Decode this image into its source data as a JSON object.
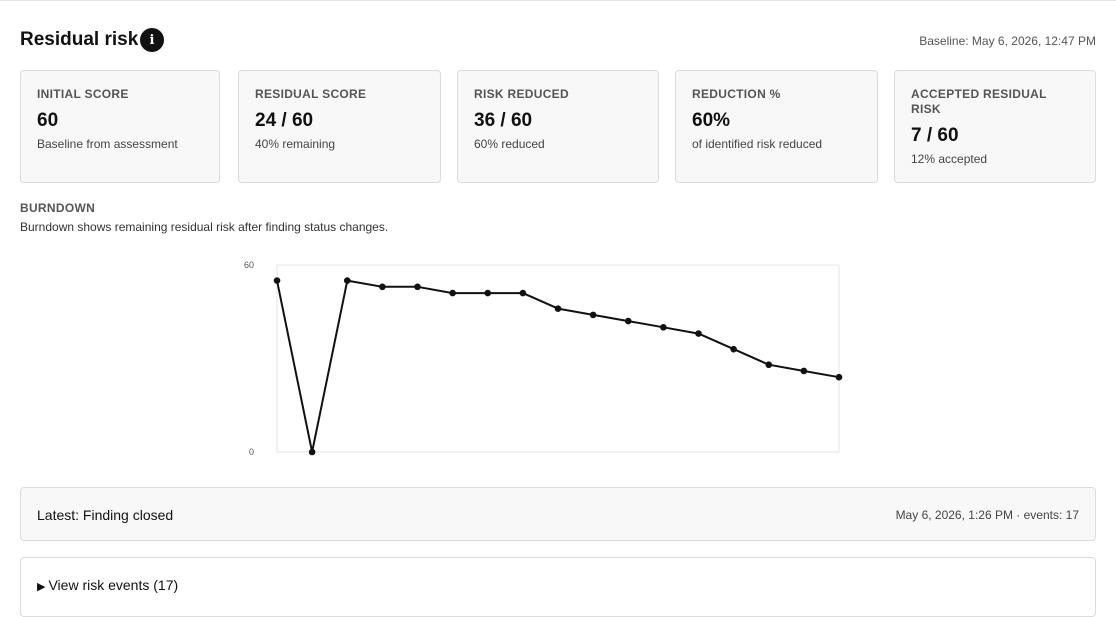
{
  "header": {
    "title": "Residual risk",
    "info_icon": "info-icon",
    "baseline": "Baseline: May 6, 2026, 12:47 PM"
  },
  "cards": [
    {
      "label": "INITIAL SCORE",
      "value": "60",
      "sub": "Baseline from assessment"
    },
    {
      "label": "RESIDUAL SCORE",
      "value": "24 / 60",
      "sub": "40% remaining"
    },
    {
      "label": "RISK REDUCED",
      "value": "36 / 60",
      "sub": "60% reduced"
    },
    {
      "label": "REDUCTION %",
      "value": "60%",
      "sub": "of identified risk reduced"
    },
    {
      "label": "ACCEPTED RESIDUAL RISK",
      "value": "7 / 60",
      "sub": "12% accepted"
    }
  ],
  "burndown": {
    "title": "BURNDOWN",
    "description": "Burndown shows remaining residual risk after finding status changes."
  },
  "chart_data": {
    "type": "line",
    "title": "",
    "xlabel": "",
    "ylabel": "",
    "ylim": [
      0,
      60
    ],
    "yticks": [
      0,
      60
    ],
    "grid": false,
    "x": [
      1,
      2,
      3,
      4,
      5,
      6,
      7,
      8,
      9,
      10,
      11,
      12,
      13,
      14,
      15,
      16,
      17
    ],
    "values": [
      55,
      0,
      55,
      53,
      53,
      51,
      51,
      51,
      46,
      44,
      42,
      40,
      38,
      33,
      28,
      26,
      24
    ],
    "color": "#111111"
  },
  "latest": {
    "text": "Latest: Finding closed",
    "meta": "May 6, 2026, 1:26 PM · events: 17"
  },
  "events": {
    "toggle_icon": "▶",
    "label": "View risk events (17)"
  }
}
